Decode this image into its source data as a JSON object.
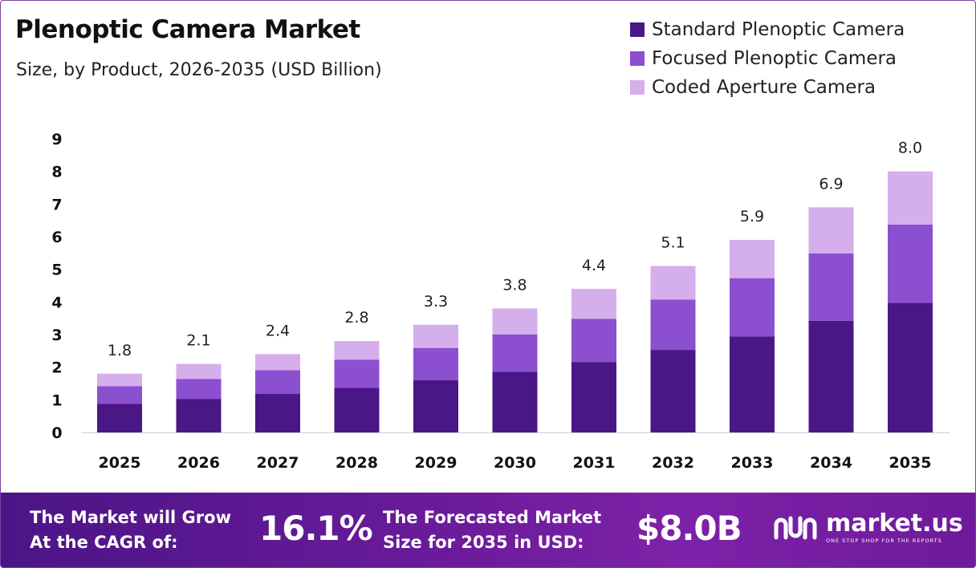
{
  "chart_data": {
    "type": "bar",
    "stacked": true,
    "title": "Plenoptic Camera Market",
    "subtitle": "Size, by Product, 2026-2035 (USD Billion)",
    "categories": [
      "2025",
      "2026",
      "2027",
      "2028",
      "2029",
      "2030",
      "2031",
      "2032",
      "2033",
      "2034",
      "2035"
    ],
    "series": [
      {
        "name": "Standard Plenoptic Camera",
        "color": "#4a1786",
        "values": [
          0.88,
          1.03,
          1.18,
          1.37,
          1.6,
          1.86,
          2.16,
          2.53,
          2.94,
          3.42,
          3.97
        ]
      },
      {
        "name": "Focused Plenoptic Camera",
        "color": "#8c4fcf",
        "values": [
          0.54,
          0.61,
          0.73,
          0.86,
          0.99,
          1.14,
          1.32,
          1.54,
          1.79,
          2.07,
          2.4
        ]
      },
      {
        "name": "Coded Aperture Camera",
        "color": "#d5aeec",
        "values": [
          0.38,
          0.46,
          0.49,
          0.57,
          0.71,
          0.8,
          0.92,
          1.03,
          1.17,
          1.41,
          1.63
        ]
      }
    ],
    "totals": [
      "1.8",
      "2.1",
      "2.4",
      "2.8",
      "3.3",
      "3.8",
      "4.4",
      "5.1",
      "5.9",
      "6.9",
      "8.0"
    ],
    "yticks": [
      "0",
      "1",
      "2",
      "3",
      "4",
      "5",
      "6",
      "7",
      "8",
      "9"
    ],
    "ylim": [
      0,
      9
    ],
    "grid": false,
    "legend_position": "top-right",
    "xlabel": "",
    "ylabel": ""
  },
  "footer": {
    "cagr_label_line1": "The Market will Grow",
    "cagr_label_line2": "At the CAGR of:",
    "cagr_value": "16.1%",
    "forecast_label_line1": "The Forecasted Market",
    "forecast_label_line2": "Size for 2035 in USD:",
    "forecast_value": "$8.0B",
    "logo_name": "market.us",
    "logo_tagline": "ONE STOP SHOP FOR THE REPORTS"
  },
  "colors": {
    "footer_gradient_start": "#4b1587",
    "footer_gradient_end": "#7d22a8",
    "frame_border": "#7b3fa0"
  }
}
